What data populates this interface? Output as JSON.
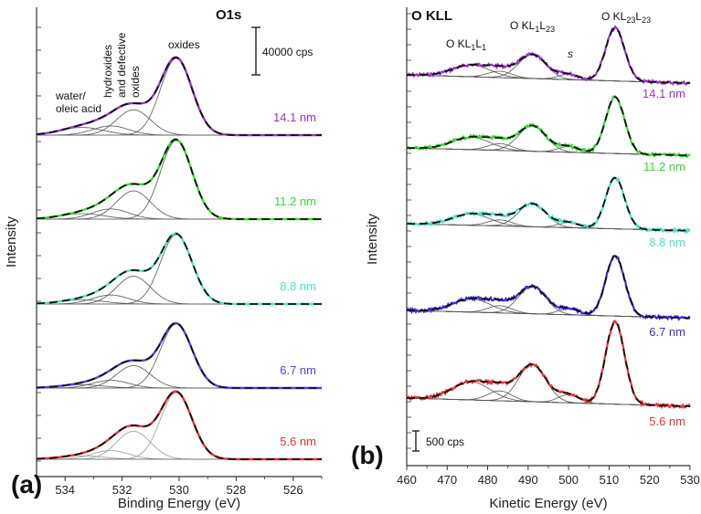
{
  "chart_data": [
    {
      "type": "line",
      "panel_label": "(a)",
      "title": "O1s",
      "xlabel": "Binding Energy (eV)",
      "ylabel": "Intensity",
      "xlim": [
        535,
        525
      ],
      "x_ticks": [
        "534",
        "532",
        "530",
        "528",
        "526"
      ],
      "x_tick_values": [
        534,
        532,
        530,
        528,
        526
      ],
      "scale_bar": "40000 cps",
      "annotations": {
        "water": "water/",
        "water2": "oleic acid",
        "hydroxides1": "hydroxides",
        "hydroxides2": "and defective",
        "hydroxides3": "oxides",
        "oxides": "oxides"
      },
      "components": [
        {
          "name": "oxides",
          "center": 530.1,
          "fwhm": 1.3
        },
        {
          "name": "defective oxides",
          "center": 531.6,
          "fwhm": 1.4
        },
        {
          "name": "hydroxides",
          "center": 532.4,
          "fwhm": 1.5
        },
        {
          "name": "water/oleic acid",
          "center": 533.4,
          "fwhm": 1.8
        }
      ],
      "series": [
        {
          "name": "14.1 nm",
          "color": "#9b36c9",
          "amplitudes": [
            1.0,
            0.33,
            0.12,
            0.1
          ]
        },
        {
          "name": "11.2 nm",
          "color": "#3fd63a",
          "amplitudes": [
            1.0,
            0.36,
            0.13,
            0.07
          ]
        },
        {
          "name": "8.8 nm",
          "color": "#4fe0c8",
          "amplitudes": [
            1.0,
            0.4,
            0.13,
            0.06
          ]
        },
        {
          "name": "6.7 nm",
          "color": "#5a3ee8",
          "amplitudes": [
            1.0,
            0.35,
            0.12,
            0.05
          ]
        },
        {
          "name": "5.6 nm",
          "color": "#e8323a",
          "amplitudes": [
            1.0,
            0.42,
            0.13,
            0.05
          ]
        }
      ]
    },
    {
      "type": "line",
      "panel_label": "(b)",
      "title": "O KLL",
      "xlabel": "Kinetic Energy (eV)",
      "ylabel": "Intensity",
      "xlim": [
        460,
        530
      ],
      "x_ticks": [
        "460",
        "470",
        "480",
        "490",
        "500",
        "510",
        "520",
        "530"
      ],
      "x_tick_values": [
        460,
        470,
        480,
        490,
        500,
        510,
        520,
        530
      ],
      "scale_bar": "500 cps",
      "peak_labels": {
        "kl1l1_main": "O KL",
        "kl1l1_sub1": "1",
        "kl1l1_mid": "L",
        "kl1l1_sub2": "1",
        "kl1l23_main": "O KL",
        "kl1l23_sub1": "1",
        "kl1l23_mid": "L",
        "kl1l23_sub2": "23",
        "kl23l23_main": "O KL",
        "kl23l23_sub1": "23",
        "kl23l23_mid": "L",
        "kl23l23_sub2": "23",
        "satellite": "s"
      },
      "components": [
        {
          "name": "KL1L1",
          "center": 476,
          "fwhm": 11,
          "rel": 0.22
        },
        {
          "name": "KL1L23 shoulder",
          "center": 483,
          "fwhm": 7,
          "rel": 0.12
        },
        {
          "name": "KL1L23",
          "center": 491,
          "fwhm": 8,
          "rel": 0.45
        },
        {
          "name": "satellite s",
          "center": 500,
          "fwhm": 6,
          "rel": 0.1
        },
        {
          "name": "KL23L23",
          "center": 511.5,
          "fwhm": 5.5,
          "rel": 1.0
        }
      ],
      "series": [
        {
          "name": "14.1 nm",
          "color": "#9b36c9"
        },
        {
          "name": "11.2 nm",
          "color": "#3fd63a"
        },
        {
          "name": "8.8 nm",
          "color": "#4fe0c8"
        },
        {
          "name": "6.7 nm",
          "color": "#3a2fd0"
        },
        {
          "name": "5.6 nm",
          "color": "#e8323a"
        }
      ]
    }
  ]
}
